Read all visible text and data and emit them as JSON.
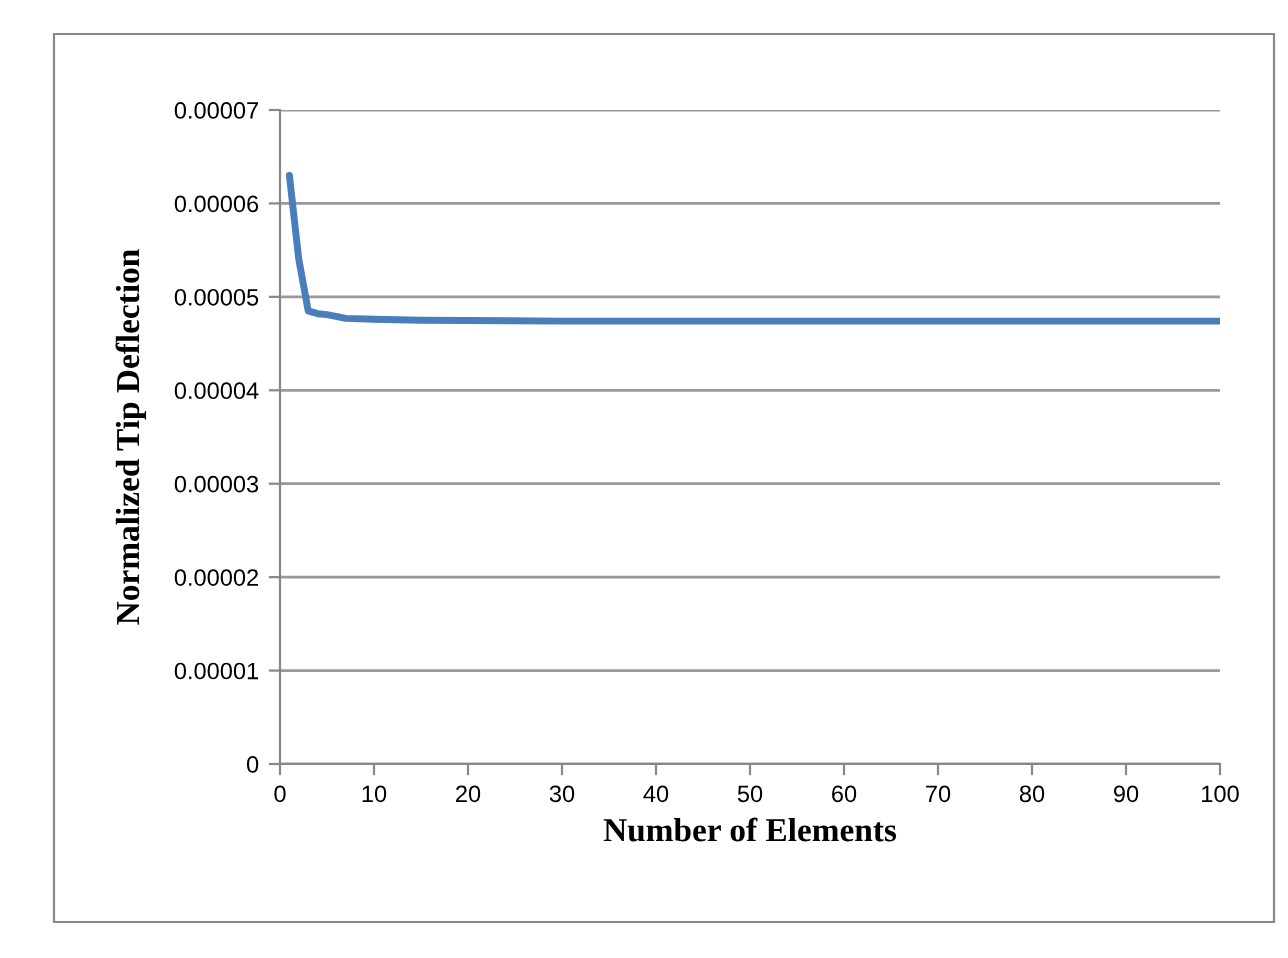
{
  "chart_data": {
    "type": "line",
    "xlabel": "Number of Elements",
    "ylabel": "Normalized Tip Deflection",
    "series": [
      {
        "color": "#4a7ebb",
        "x": [
          1,
          2,
          3,
          4,
          5,
          7,
          10,
          15,
          30,
          100
        ],
        "values": [
          6.3e-05,
          5.4e-05,
          4.85e-05,
          4.82e-05,
          4.81e-05,
          4.77e-05,
          4.76e-05,
          4.75e-05,
          4.74e-05,
          4.74e-05
        ]
      }
    ],
    "xlim": [
      0,
      100
    ],
    "xticks": [
      0,
      10,
      20,
      30,
      40,
      50,
      60,
      70,
      80,
      90,
      100
    ],
    "ylim": [
      0,
      7e-05
    ],
    "yticks": [
      0,
      {
        "value": 1e-05,
        "label": "0.00001"
      },
      {
        "value": 2e-05,
        "label": "0.00002"
      },
      {
        "value": 3e-05,
        "label": "0.00003"
      },
      {
        "value": 4e-05,
        "label": "0.00004"
      },
      {
        "value": 5e-05,
        "label": "0.00005"
      },
      {
        "value": 6e-05,
        "label": "0.00006"
      },
      {
        "value": 7e-05,
        "label": "0.00007"
      }
    ],
    "grid": "y",
    "marker": "none",
    "line_style": "solid"
  }
}
